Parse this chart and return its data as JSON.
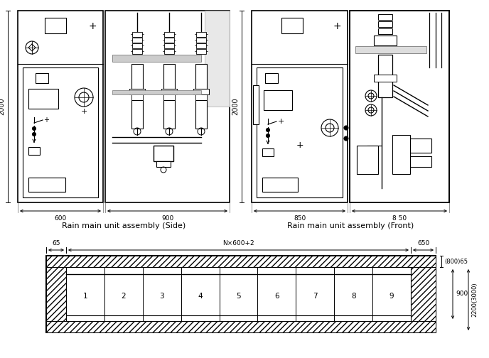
{
  "bg_color": "#ffffff",
  "label_side": "Rain main unit assembly (Side)",
  "label_front": "Rain main unit assembly (Front)",
  "dim_2000_side": "2000",
  "dim_600": "600",
  "dim_900": "900",
  "dim_2000_front": "2000",
  "dim_850a": "850",
  "dim_850b": "8 50",
  "dim_65": "65",
  "dim_n600": "N×600+2",
  "dim_650": "650",
  "dim_900b": "900",
  "dim_2200": "2200(3000)",
  "dim_800_65": "(800)65",
  "cells": [
    "1",
    "2",
    "3",
    "4",
    "5",
    "6",
    "7",
    "8",
    "9"
  ]
}
